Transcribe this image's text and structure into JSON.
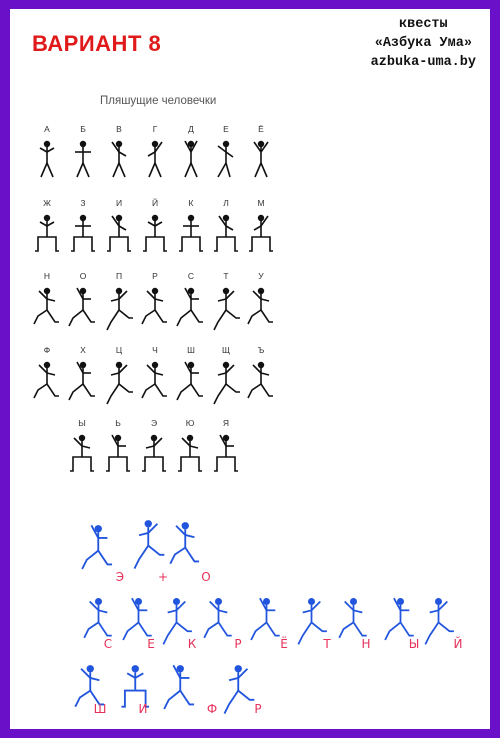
{
  "header": {
    "variant": "ВАРИАНТ 8",
    "brand_line1": "квесты",
    "brand_line2": "«Азбука Ума»",
    "brand_line3": "azbuka-uma.by"
  },
  "key": {
    "title": "Пляшущие человечки",
    "rows": [
      [
        "А",
        "Б",
        "В",
        "Г",
        "Д",
        "Е",
        "Ё"
      ],
      [
        "Ж",
        "З",
        "И",
        "Й",
        "К",
        "Л",
        "М"
      ],
      [
        "Н",
        "О",
        "П",
        "Р",
        "С",
        "Т",
        "У"
      ],
      [
        "Ф",
        "Х",
        "Ц",
        "Ч",
        "Ш",
        "Щ",
        "Ъ"
      ],
      [
        "Ы",
        "Ь",
        "Э",
        "Ю",
        "Я"
      ]
    ]
  },
  "answer": {
    "line1": [
      "Э",
      "+",
      "О"
    ],
    "line2": [
      "С",
      "Е",
      "К",
      "Р",
      "Ё",
      "Т",
      "Н",
      "Ы",
      "Й"
    ],
    "line3": [
      "Ш",
      "И",
      "Ф",
      "Р"
    ]
  },
  "colors": {
    "frame": "#6a10c9",
    "variant": "#e01a1a",
    "figure_key": "#111111",
    "figure_hand": "#2255dd",
    "hand_letters": "#e6325a"
  }
}
